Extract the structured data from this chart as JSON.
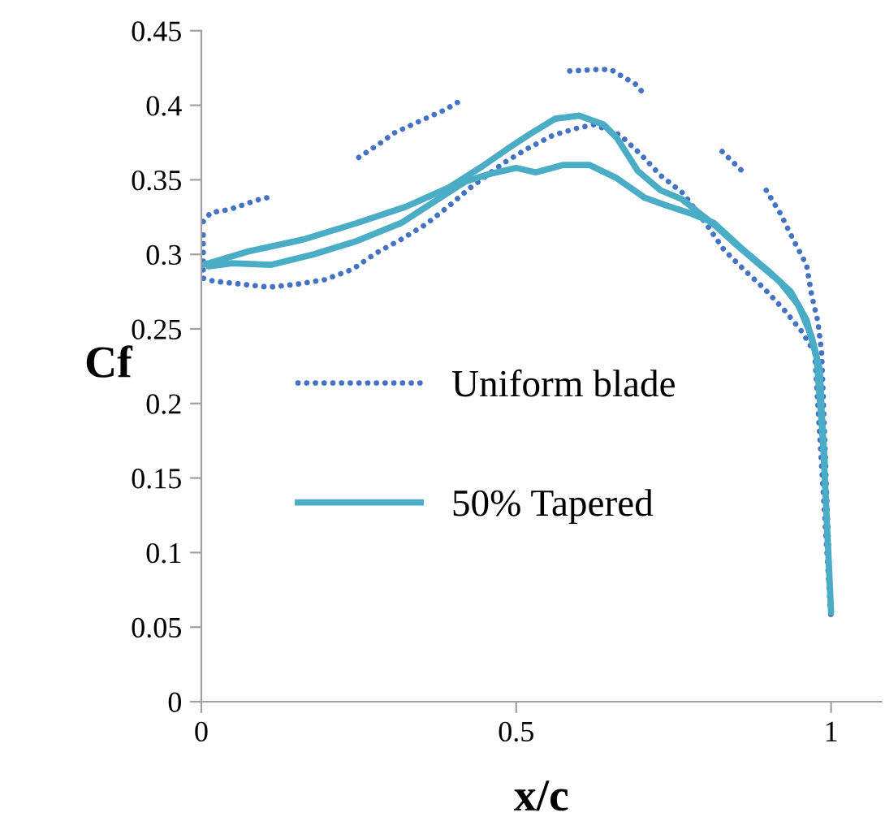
{
  "chart_data": {
    "type": "line",
    "xlabel": "x/c",
    "ylabel": "Cf",
    "xlim": [
      0,
      1.08
    ],
    "xticks": [
      0,
      0.5,
      1
    ],
    "ylim": [
      0,
      0.45
    ],
    "yticks": [
      0,
      0.05,
      0.1,
      0.15,
      0.2,
      0.25,
      0.3,
      0.35,
      0.4,
      0.45
    ],
    "grid": false,
    "legend": "center",
    "marker": "none",
    "series": [
      {
        "name": "Uniform blade",
        "color": "#4472c4",
        "line_style": "dotted",
        "x": [
          0.003,
          0.003,
          0.003,
          0.02,
          0.064,
          0.108,
          0.152,
          0.196,
          0.24,
          0.278,
          0.317,
          0.356,
          0.392,
          0.425,
          0.479,
          0.518,
          0.559,
          0.6,
          0.624,
          0.665,
          0.698,
          0.729,
          0.765,
          0.804,
          0.83,
          0.861,
          0.894,
          0.925,
          0.954,
          0.974,
          1.0
        ],
        "values": [
          0.313,
          0.304,
          0.284,
          0.282,
          0.28,
          0.278,
          0.28,
          0.283,
          0.29,
          0.301,
          0.31,
          0.32,
          0.332,
          0.344,
          0.361,
          0.371,
          0.38,
          0.385,
          0.387,
          0.38,
          0.367,
          0.353,
          0.341,
          0.319,
          0.303,
          0.29,
          0.277,
          0.263,
          0.248,
          0.234,
          0.055
        ]
      },
      {
        "color": "#4472c4",
        "line_style": "dotted",
        "x": [
          0.003,
          0.015,
          0.044,
          0.093,
          0.116,
          null,
          0.25,
          0.289,
          0.304,
          0.345,
          0.387,
          0.407,
          null,
          0.585,
          0.629,
          0.65,
          0.69,
          0.704,
          null,
          0.827,
          0.861,
          null,
          0.897,
          0.92,
          0.941,
          0.961,
          0.969,
          0.979,
          0.985,
          1.0
        ],
        "values": [
          0.322,
          0.328,
          0.33,
          0.337,
          0.339,
          null,
          0.365,
          0.376,
          0.381,
          0.389,
          0.397,
          0.402,
          null,
          0.423,
          0.424,
          0.424,
          0.414,
          0.407,
          null,
          0.369,
          0.355,
          null,
          0.343,
          0.327,
          0.309,
          0.293,
          0.273,
          0.255,
          0.234,
          0.055
        ]
      },
      {
        "name": "50% Tapered",
        "color": "#4bacc6",
        "line_style": "solid",
        "x": [
          0.003,
          0.075,
          0.162,
          0.247,
          0.325,
          0.394,
          0.446,
          0.487,
          0.523,
          0.562,
          0.6,
          0.639,
          0.66,
          0.693,
          0.729,
          0.763,
          0.814,
          0.848,
          0.884,
          0.918,
          0.948,
          0.969,
          0.982,
          1.0
        ],
        "values": [
          0.293,
          0.302,
          0.31,
          0.321,
          0.332,
          0.345,
          0.359,
          0.371,
          0.381,
          0.391,
          0.393,
          0.387,
          0.378,
          0.356,
          0.343,
          0.337,
          0.32,
          0.307,
          0.294,
          0.282,
          0.266,
          0.245,
          0.223,
          0.06
        ]
      },
      {
        "color": "#4bacc6",
        "line_style": "solid",
        "x": [
          0.012,
          0.049,
          0.111,
          0.178,
          0.247,
          0.317,
          0.376,
          0.42,
          0.459,
          0.5,
          0.531,
          0.575,
          0.616,
          0.66,
          0.704,
          0.737,
          0.78,
          0.814,
          0.858,
          0.9,
          0.936,
          0.961,
          0.977,
          0.99
        ],
        "values": [
          0.292,
          0.294,
          0.293,
          0.3,
          0.309,
          0.321,
          0.337,
          0.349,
          0.354,
          0.358,
          0.355,
          0.36,
          0.36,
          0.351,
          0.338,
          0.333,
          0.327,
          0.321,
          0.304,
          0.289,
          0.275,
          0.256,
          0.231,
          0.16
        ]
      }
    ]
  }
}
